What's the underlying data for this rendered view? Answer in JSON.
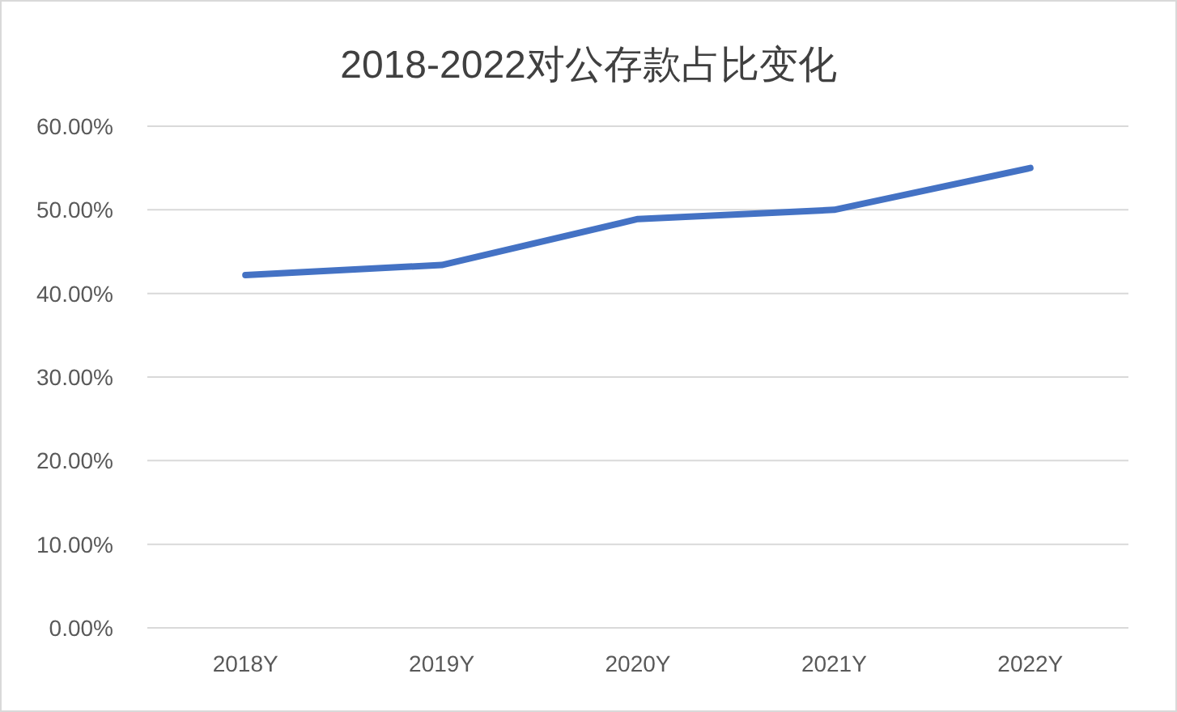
{
  "chart_data": {
    "type": "line",
    "title": "2018-2022对公存款占比变化",
    "categories": [
      "2018Y",
      "2019Y",
      "2020Y",
      "2021Y",
      "2022Y"
    ],
    "series": [
      {
        "color": "#4472c4",
        "values": [
          42.2,
          43.4,
          48.9,
          50.0,
          55.0
        ]
      }
    ],
    "ylim": [
      0,
      60
    ],
    "yticks": [
      {
        "value": 0,
        "label": "0.00%"
      },
      {
        "value": 10,
        "label": "10.00%"
      },
      {
        "value": 20,
        "label": "20.00%"
      },
      {
        "value": 30,
        "label": "30.00%"
      },
      {
        "value": 40,
        "label": "40.00%"
      },
      {
        "value": 50,
        "label": "50.00%"
      },
      {
        "value": 60,
        "label": "60.00%"
      }
    ],
    "grid": "y",
    "marker": "none",
    "line_style": "solid"
  }
}
